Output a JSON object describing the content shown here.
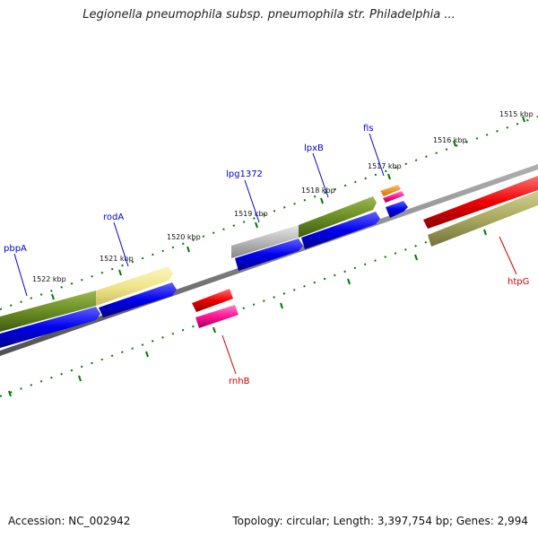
{
  "title": "Legionella pneumophila subsp. pneumophila str. Philadelphia ...",
  "footer": {
    "accession": "Accession: NC_002942",
    "topology": "Topology: circular; Length: 3,397,754 bp; Genes: 2,994"
  },
  "scale": {
    "ticks": [
      "1515 kbp",
      "1516 kbp",
      "1517 kbp",
      "1518 kbp",
      "1519 kbp",
      "1520 kbp",
      "1521 kbp",
      "1522 kbp"
    ]
  },
  "genes": [
    {
      "name": "pbpA",
      "color": "#0000cc"
    },
    {
      "name": "rodA",
      "color": "#0000cc"
    },
    {
      "name": "lpg1372",
      "color": "#0000cc"
    },
    {
      "name": "lpxB",
      "color": "#0000cc"
    },
    {
      "name": "fis",
      "color": "#0000cc"
    },
    {
      "name": "rnhB",
      "color": "#cc0000"
    },
    {
      "name": "htpG",
      "color": "#cc0000"
    }
  ],
  "colors": {
    "forward_cds": "#0000ee",
    "reverse_cds": "#ee0000",
    "olive": "#6b8e23",
    "khaki": "#f0e68c",
    "gray": "#b8b8b8",
    "orange": "#ff8c00",
    "pink": "#ff1493",
    "darkkhaki": "#a8a860",
    "backbone": "#808080",
    "tick": "#007a00"
  }
}
